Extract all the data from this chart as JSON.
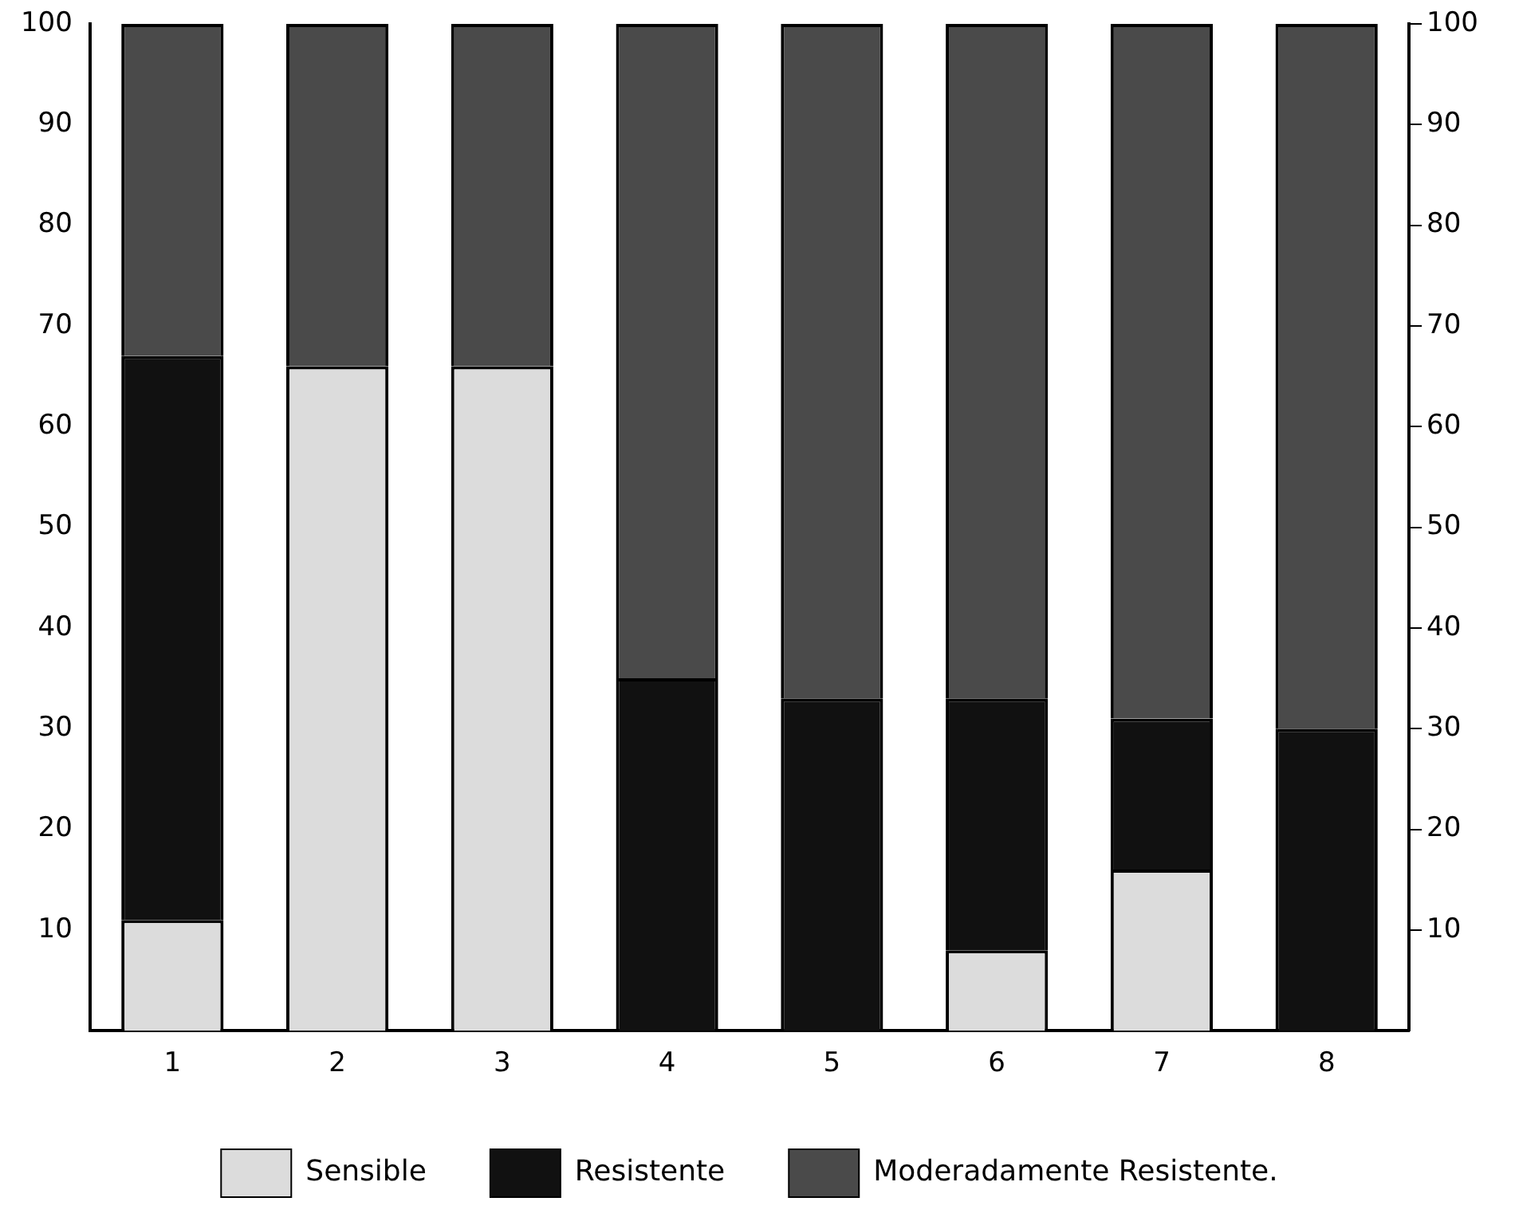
{
  "chart_data": {
    "type": "bar",
    "stacked": true,
    "categories": [
      "1",
      "2",
      "3",
      "4",
      "5",
      "6",
      "7",
      "8"
    ],
    "series": [
      {
        "name": "Sensible",
        "color": "#dcdcdc",
        "values": [
          11,
          66,
          66,
          0,
          0,
          8,
          16,
          0
        ]
      },
      {
        "name": "Resistente",
        "color": "#111111",
        "values": [
          56,
          0,
          0,
          35,
          33,
          25,
          15,
          30
        ]
      },
      {
        "name": "Moderadamente Resistente.",
        "color": "#4a4a4a",
        "values": [
          33,
          34,
          34,
          65,
          67,
          67,
          69,
          70
        ]
      }
    ],
    "ylim": [
      0,
      100
    ],
    "yticks": [
      10,
      20,
      30,
      40,
      50,
      60,
      70,
      80,
      90,
      100
    ],
    "y2lim": [
      0,
      100
    ],
    "y2ticks": [
      10,
      20,
      30,
      40,
      50,
      60,
      70,
      80,
      90,
      100
    ],
    "grid": false,
    "legend": "bottom"
  }
}
